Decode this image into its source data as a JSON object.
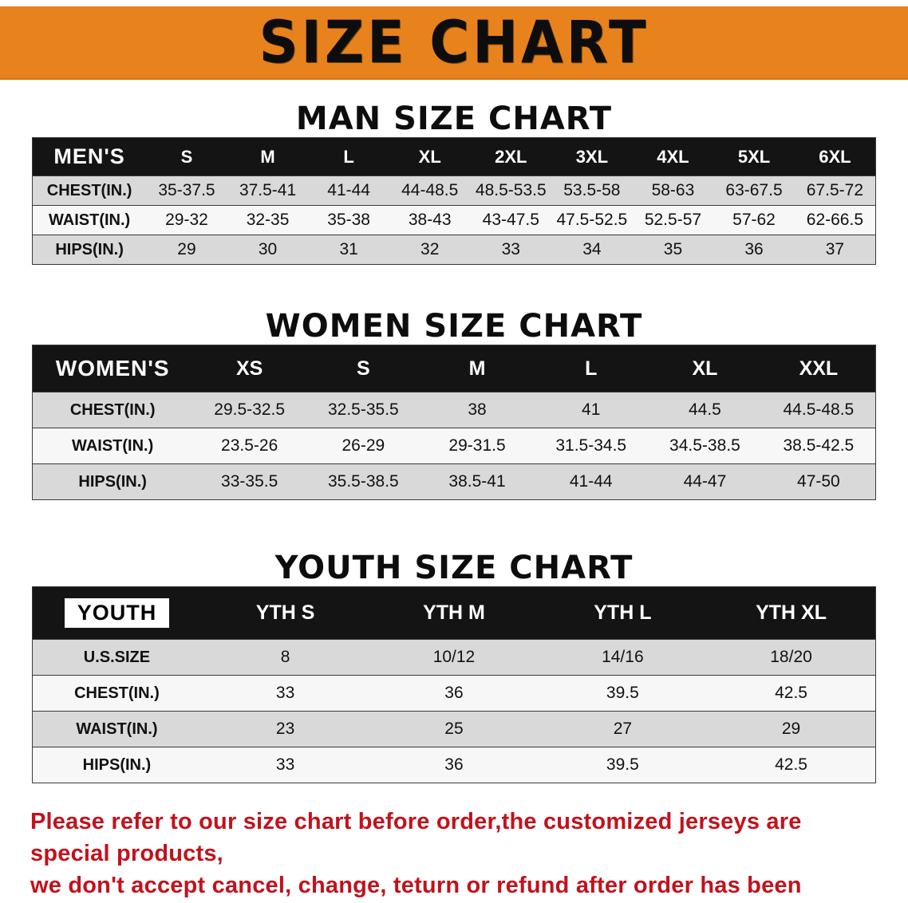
{
  "banner": {
    "title": "SIZE CHART",
    "bg_color": "#e8821c",
    "text_color": "#0d0d0d"
  },
  "chart_data": [
    {
      "type": "table",
      "title": "MAN SIZE CHART",
      "columns": [
        "MEN'S",
        "S",
        "M",
        "L",
        "XL",
        "2XL",
        "3XL",
        "4XL",
        "5XL",
        "6XL"
      ],
      "rows": [
        [
          "CHEST(IN.)",
          "35-37.5",
          "37.5-41",
          "41-44",
          "44-48.5",
          "48.5-53.5",
          "53.5-58",
          "58-63",
          "63-67.5",
          "67.5-72"
        ],
        [
          "WAIST(IN.)",
          "29-32",
          "32-35",
          "35-38",
          "38-43",
          "43-47.5",
          "47.5-52.5",
          "52.5-57",
          "57-62",
          "62-66.5"
        ],
        [
          "HIPS(IN.)",
          "29",
          "30",
          "31",
          "32",
          "33",
          "34",
          "35",
          "36",
          "37"
        ]
      ],
      "header_bg": "#141414",
      "zebra_colors": [
        "#d9d9d9",
        "#f7f7f7"
      ]
    },
    {
      "type": "table",
      "title": "WOMEN SIZE CHART",
      "columns": [
        "WOMEN'S",
        "XS",
        "S",
        "M",
        "L",
        "XL",
        "XXL"
      ],
      "rows": [
        [
          "CHEST(IN.)",
          "29.5-32.5",
          "32.5-35.5",
          "38",
          "41",
          "44.5",
          "44.5-48.5"
        ],
        [
          "WAIST(IN.)",
          "23.5-26",
          "26-29",
          "29-31.5",
          "31.5-34.5",
          "34.5-38.5",
          "38.5-42.5"
        ],
        [
          "HIPS(IN.)",
          "33-35.5",
          "35.5-38.5",
          "38.5-41",
          "41-44",
          "44-47",
          "47-50"
        ]
      ],
      "header_bg": "#141414",
      "zebra_colors": [
        "#d9d9d9",
        "#f7f7f7"
      ]
    },
    {
      "type": "table",
      "title": "YOUTH SIZE CHART",
      "columns": [
        "YOUTH",
        "YTH S",
        "YTH M",
        "YTH L",
        "YTH XL"
      ],
      "rows": [
        [
          "U.S.SIZE",
          "8",
          "10/12",
          "14/16",
          "18/20"
        ],
        [
          "CHEST(IN.)",
          "33",
          "36",
          "39.5",
          "42.5"
        ],
        [
          "WAIST(IN.)",
          "23",
          "25",
          "27",
          "29"
        ],
        [
          "HIPS(IN.)",
          "33",
          "36",
          "39.5",
          "42.5"
        ]
      ],
      "header_bg": "#141414",
      "zebra_colors": [
        "#d9d9d9",
        "#f7f7f7"
      ]
    }
  ],
  "notice": {
    "line1": "Please refer to our size chart before order,the customized jerseys are special products,",
    "line2": "we don't accept cancel, change, teturn or refund after order has been placed!",
    "color": "#c2121c"
  }
}
